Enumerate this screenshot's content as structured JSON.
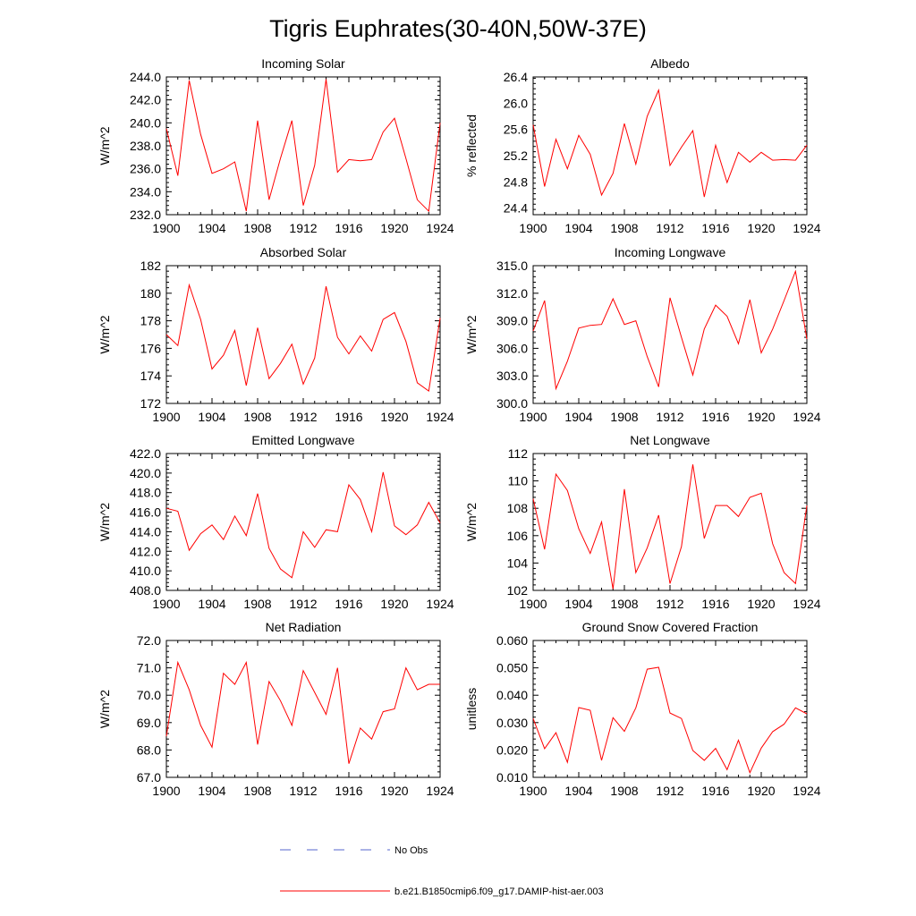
{
  "figure": {
    "title": "Tigris Euphrates(30-40N,50W-37E)"
  },
  "legend": {
    "items": [
      {
        "label": "No Obs",
        "color": "#5566cc",
        "style": "dashed"
      },
      {
        "label": "b.e21.B1850cmip6.f09_g17.DAMIP-hist-aer.003",
        "color": "#ff0000",
        "style": "solid"
      }
    ]
  },
  "chart_data": [
    {
      "type": "line",
      "title": "Incoming Solar",
      "ylabel": "W/m^2",
      "xlim": [
        1900,
        1924
      ],
      "ylim": [
        232,
        244
      ],
      "yticks": [
        232,
        234,
        236,
        238,
        240,
        242,
        244
      ],
      "ytick_labels": [
        "232.0",
        "234.0",
        "236.0",
        "238.0",
        "240.0",
        "242.0",
        "244.0"
      ],
      "xticks": [
        1900,
        1904,
        1908,
        1912,
        1916,
        1920,
        1924
      ],
      "xtick_labels": [
        "1900",
        "1904",
        "1908",
        "1912",
        "1916",
        "1920",
        "1924"
      ],
      "x": [
        1900,
        1901,
        1902,
        1903,
        1904,
        1905,
        1906,
        1907,
        1908,
        1909,
        1910,
        1911,
        1912,
        1913,
        1914,
        1915,
        1916,
        1917,
        1918,
        1919,
        1920,
        1921,
        1922,
        1923,
        1924
      ],
      "values": [
        239.5,
        235.4,
        243.7,
        239.0,
        235.6,
        236.0,
        236.6,
        232.3,
        240.2,
        233.3,
        236.9,
        240.2,
        232.8,
        236.3,
        243.8,
        235.7,
        236.8,
        236.7,
        236.8,
        239.2,
        240.4,
        236.9,
        233.3,
        232.3,
        240.0
      ],
      "color": "#ff0000"
    },
    {
      "type": "line",
      "title": "Albedo",
      "ylabel": "% reflected",
      "xlim": [
        1900,
        1924
      ],
      "ylim": [
        24.3,
        26.4
      ],
      "yticks": [
        24.4,
        24.8,
        25.2,
        25.6,
        26.0,
        26.4
      ],
      "ytick_labels": [
        "24.4",
        "24.8",
        "25.2",
        "25.6",
        "26.0",
        "26.4"
      ],
      "xticks": [
        1900,
        1904,
        1908,
        1912,
        1916,
        1920,
        1924
      ],
      "xtick_labels": [
        "1900",
        "1904",
        "1908",
        "1912",
        "1916",
        "1920",
        "1924"
      ],
      "x": [
        1900,
        1901,
        1902,
        1903,
        1904,
        1905,
        1906,
        1907,
        1908,
        1909,
        1910,
        1911,
        1912,
        1913,
        1914,
        1915,
        1916,
        1917,
        1918,
        1919,
        1920,
        1921,
        1922,
        1923,
        1924
      ],
      "values": [
        25.67,
        24.73,
        25.45,
        25.0,
        25.51,
        25.22,
        24.6,
        24.93,
        25.69,
        25.07,
        25.8,
        26.2,
        25.05,
        25.33,
        25.58,
        24.57,
        25.36,
        24.79,
        25.25,
        25.1,
        25.25,
        25.13,
        25.14,
        25.13,
        25.36
      ],
      "color": "#ff0000"
    },
    {
      "type": "line",
      "title": "Absorbed Solar",
      "ylabel": "W/m^2",
      "xlim": [
        1900,
        1924
      ],
      "ylim": [
        172,
        182
      ],
      "yticks": [
        172,
        174,
        176,
        178,
        180,
        182
      ],
      "ytick_labels": [
        "172",
        "174",
        "176",
        "178",
        "180",
        "182"
      ],
      "xticks": [
        1900,
        1904,
        1908,
        1912,
        1916,
        1920,
        1924
      ],
      "xtick_labels": [
        "1900",
        "1904",
        "1908",
        "1912",
        "1916",
        "1920",
        "1924"
      ],
      "x": [
        1900,
        1901,
        1902,
        1903,
        1904,
        1905,
        1906,
        1907,
        1908,
        1909,
        1910,
        1911,
        1912,
        1913,
        1914,
        1915,
        1916,
        1917,
        1918,
        1919,
        1920,
        1921,
        1922,
        1923,
        1924
      ],
      "values": [
        177.0,
        176.2,
        180.6,
        178.1,
        174.5,
        175.5,
        177.3,
        173.3,
        177.5,
        173.8,
        174.9,
        176.3,
        173.4,
        175.3,
        180.5,
        176.8,
        175.6,
        176.9,
        175.8,
        178.1,
        178.6,
        176.5,
        173.5,
        172.9,
        178.2
      ],
      "color": "#ff0000"
    },
    {
      "type": "line",
      "title": "Incoming Longwave",
      "ylabel": "W/m^2",
      "xlim": [
        1900,
        1924
      ],
      "ylim": [
        300,
        315
      ],
      "yticks": [
        300,
        303,
        306,
        309,
        312,
        315
      ],
      "ytick_labels": [
        "300.0",
        "303.0",
        "306.0",
        "309.0",
        "312.0",
        "315.0"
      ],
      "xticks": [
        1900,
        1904,
        1908,
        1912,
        1916,
        1920,
        1924
      ],
      "xtick_labels": [
        "1900",
        "1904",
        "1908",
        "1912",
        "1916",
        "1920",
        "1924"
      ],
      "x": [
        1900,
        1901,
        1902,
        1903,
        1904,
        1905,
        1906,
        1907,
        1908,
        1909,
        1910,
        1911,
        1912,
        1913,
        1914,
        1915,
        1916,
        1917,
        1918,
        1919,
        1920,
        1921,
        1922,
        1923,
        1924
      ],
      "values": [
        307.9,
        311.2,
        301.6,
        304.6,
        308.2,
        308.5,
        308.6,
        311.4,
        308.6,
        309.0,
        305.1,
        301.8,
        311.5,
        307.2,
        303.1,
        308.1,
        310.7,
        309.5,
        306.5,
        311.3,
        305.5,
        308.1,
        311.2,
        314.4,
        307.0
      ],
      "color": "#ff0000"
    },
    {
      "type": "line",
      "title": "Emitted Longwave",
      "ylabel": "W/m^2",
      "xlim": [
        1900,
        1924
      ],
      "ylim": [
        408,
        422
      ],
      "yticks": [
        408,
        410,
        412,
        414,
        416,
        418,
        420,
        422
      ],
      "ytick_labels": [
        "408.0",
        "410.0",
        "412.0",
        "414.0",
        "416.0",
        "418.0",
        "420.0",
        "422.0"
      ],
      "xticks": [
        1900,
        1904,
        1908,
        1912,
        1916,
        1920,
        1924
      ],
      "xtick_labels": [
        "1900",
        "1904",
        "1908",
        "1912",
        "1916",
        "1920",
        "1924"
      ],
      "x": [
        1900,
        1901,
        1902,
        1903,
        1904,
        1905,
        1906,
        1907,
        1908,
        1909,
        1910,
        1911,
        1912,
        1913,
        1914,
        1915,
        1916,
        1917,
        1918,
        1919,
        1920,
        1921,
        1922,
        1923,
        1924
      ],
      "values": [
        416.4,
        416.1,
        412.1,
        413.8,
        414.7,
        413.2,
        415.6,
        413.6,
        417.9,
        412.3,
        410.2,
        409.3,
        414.0,
        412.4,
        414.2,
        414.0,
        418.8,
        417.3,
        414.0,
        420.1,
        414.6,
        413.7,
        414.7,
        417.0,
        414.9
      ],
      "color": "#ff0000"
    },
    {
      "type": "line",
      "title": "Net Longwave",
      "ylabel": "W/m^2",
      "xlim": [
        1900,
        1924
      ],
      "ylim": [
        102,
        112
      ],
      "yticks": [
        102,
        104,
        106,
        108,
        110,
        112
      ],
      "ytick_labels": [
        "102",
        "104",
        "106",
        "108",
        "110",
        "112"
      ],
      "xticks": [
        1900,
        1904,
        1908,
        1912,
        1916,
        1920,
        1924
      ],
      "xtick_labels": [
        "1900",
        "1904",
        "1908",
        "1912",
        "1916",
        "1920",
        "1924"
      ],
      "x": [
        1900,
        1901,
        1902,
        1903,
        1904,
        1905,
        1906,
        1907,
        1908,
        1909,
        1910,
        1911,
        1912,
        1913,
        1914,
        1915,
        1916,
        1917,
        1918,
        1919,
        1920,
        1921,
        1922,
        1923,
        1924
      ],
      "values": [
        108.7,
        105.0,
        110.5,
        109.3,
        106.5,
        104.7,
        107.0,
        102.1,
        109.4,
        103.3,
        105.1,
        107.5,
        102.5,
        105.2,
        111.2,
        105.8,
        108.2,
        108.2,
        107.4,
        108.8,
        109.1,
        105.4,
        103.3,
        102.5,
        108.2
      ],
      "color": "#ff0000"
    },
    {
      "type": "line",
      "title": "Net Radiation",
      "ylabel": "W/m^2",
      "xlim": [
        1900,
        1924
      ],
      "ylim": [
        67,
        72
      ],
      "yticks": [
        67,
        68,
        69,
        70,
        71,
        72
      ],
      "ytick_labels": [
        "67.0",
        "68.0",
        "69.0",
        "70.0",
        "71.0",
        "72.0"
      ],
      "xticks": [
        1900,
        1904,
        1908,
        1912,
        1916,
        1920,
        1924
      ],
      "xtick_labels": [
        "1900",
        "1904",
        "1908",
        "1912",
        "1916",
        "1920",
        "1924"
      ],
      "x": [
        1900,
        1901,
        1902,
        1903,
        1904,
        1905,
        1906,
        1907,
        1908,
        1909,
        1910,
        1911,
        1912,
        1913,
        1914,
        1915,
        1916,
        1917,
        1918,
        1919,
        1920,
        1921,
        1922,
        1923,
        1924
      ],
      "values": [
        68.5,
        71.2,
        70.2,
        68.9,
        68.1,
        70.8,
        70.4,
        71.2,
        68.2,
        70.5,
        69.8,
        68.9,
        70.9,
        70.1,
        69.3,
        71.0,
        67.5,
        68.8,
        68.4,
        69.4,
        69.5,
        71.0,
        70.2,
        70.4,
        70.4
      ],
      "color": "#ff0000"
    },
    {
      "type": "line",
      "title": "Ground Snow Covered Fraction",
      "ylabel": "unitless",
      "xlim": [
        1900,
        1924
      ],
      "ylim": [
        0.01,
        0.06
      ],
      "yticks": [
        0.01,
        0.02,
        0.03,
        0.04,
        0.05,
        0.06
      ],
      "ytick_labels": [
        "0.010",
        "0.020",
        "0.030",
        "0.040",
        "0.050",
        "0.060"
      ],
      "xticks": [
        1900,
        1904,
        1908,
        1912,
        1916,
        1920,
        1924
      ],
      "xtick_labels": [
        "1900",
        "1904",
        "1908",
        "1912",
        "1916",
        "1920",
        "1924"
      ],
      "x": [
        1900,
        1901,
        1902,
        1903,
        1904,
        1905,
        1906,
        1907,
        1908,
        1909,
        1910,
        1911,
        1912,
        1913,
        1914,
        1915,
        1916,
        1917,
        1918,
        1919,
        1920,
        1921,
        1922,
        1923,
        1924
      ],
      "values": [
        0.0315,
        0.0205,
        0.0263,
        0.0155,
        0.0355,
        0.0345,
        0.0162,
        0.0318,
        0.0268,
        0.0354,
        0.0495,
        0.0502,
        0.0335,
        0.0315,
        0.0198,
        0.0162,
        0.0206,
        0.0128,
        0.0236,
        0.0117,
        0.0207,
        0.0267,
        0.0294,
        0.0354,
        0.0332
      ],
      "color": "#ff0000"
    }
  ]
}
